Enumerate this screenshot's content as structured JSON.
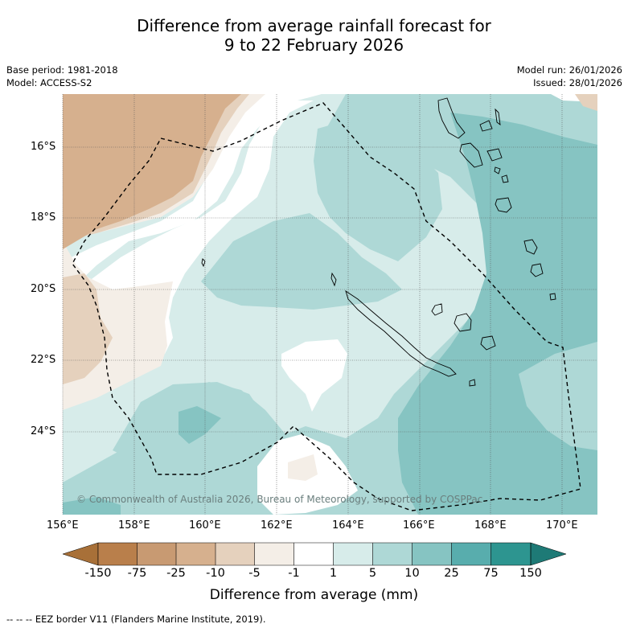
{
  "title": {
    "line1": "Difference from average rainfall forecast for",
    "line2": "9 to 22 February 2026"
  },
  "meta": {
    "base_period": "Base period: 1981-2018",
    "model": "Model: ACCESS-S2",
    "model_run": "Model run: 26/01/2026",
    "issued": "Issued: 28/01/2026"
  },
  "axes": {
    "x_ticks": [
      "156°E",
      "158°E",
      "160°E",
      "162°E",
      "164°E",
      "166°E",
      "168°E",
      "170°E"
    ],
    "y_ticks": [
      "16°S",
      "18°S",
      "20°S",
      "22°S",
      "24°S"
    ]
  },
  "copyright": "© Commonwealth of Australia 2026, Bureau of Meteorology, supported by COSPPac",
  "colorbar": {
    "labels": [
      "-150",
      "-75",
      "-25",
      "-10",
      "-5",
      "-1",
      "1",
      "5",
      "10",
      "25",
      "75",
      "150"
    ],
    "colors": [
      "#a87038",
      "#b97f4b",
      "#c89a72",
      "#d6b08e",
      "#e5d1bd",
      "#f4eee7",
      "#ffffff",
      "#d7ecea",
      "#aed8d6",
      "#86c4c2",
      "#58adad",
      "#2d9590",
      "#1e7a76"
    ],
    "title": "Difference from average (mm)"
  },
  "footnote": "--  --  -- EEZ border V11 (Flanders Marine Institute, 2019)."
}
